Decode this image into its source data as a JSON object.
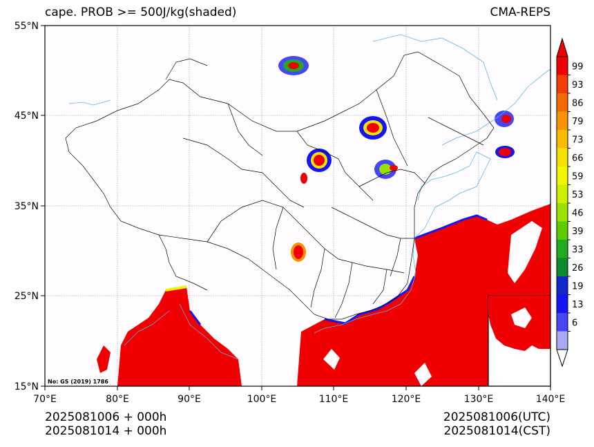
{
  "header": {
    "title": "cape. PROB >= 500J/kg(shaded)",
    "model": "CMA-REPS"
  },
  "map": {
    "lat_labels": [
      "55°N",
      "45°N",
      "35°N",
      "25°N",
      "15°N"
    ],
    "lon_labels": [
      "70°E",
      "80°E",
      "90°E",
      "100°E",
      "110°E",
      "120°E",
      "130°E",
      "140°E"
    ],
    "stamp": "No: GS (2019) 1786",
    "colors": {
      "land_border": "#000000",
      "water": "#5ab4e6",
      "grid": "#8c8c8c",
      "prob_high": "#f20000"
    }
  },
  "colorbar": {
    "labels": [
      "99",
      "93",
      "86",
      "79",
      "73",
      "66",
      "59",
      "53",
      "46",
      "39",
      "33",
      "26",
      "19",
      "13",
      "6"
    ],
    "colors": [
      "#f00000",
      "#f23c00",
      "#f56a00",
      "#f79400",
      "#f8bd00",
      "#f5e200",
      "#f0f500",
      "#cdf000",
      "#9be000",
      "#5ccc00",
      "#22aa22",
      "#0a8a2c",
      "#1028c8",
      "#1414f5",
      "#4646f5",
      "#a8a8f5"
    ],
    "top_color": "#f00000",
    "bottom_color": "#ffffff"
  },
  "footer": {
    "init_utc": "2025081006  +  000h",
    "init_cst": "2025081014  +  000h",
    "valid_utc": "2025081006(UTC)",
    "valid_cst": "2025081014(CST)"
  }
}
